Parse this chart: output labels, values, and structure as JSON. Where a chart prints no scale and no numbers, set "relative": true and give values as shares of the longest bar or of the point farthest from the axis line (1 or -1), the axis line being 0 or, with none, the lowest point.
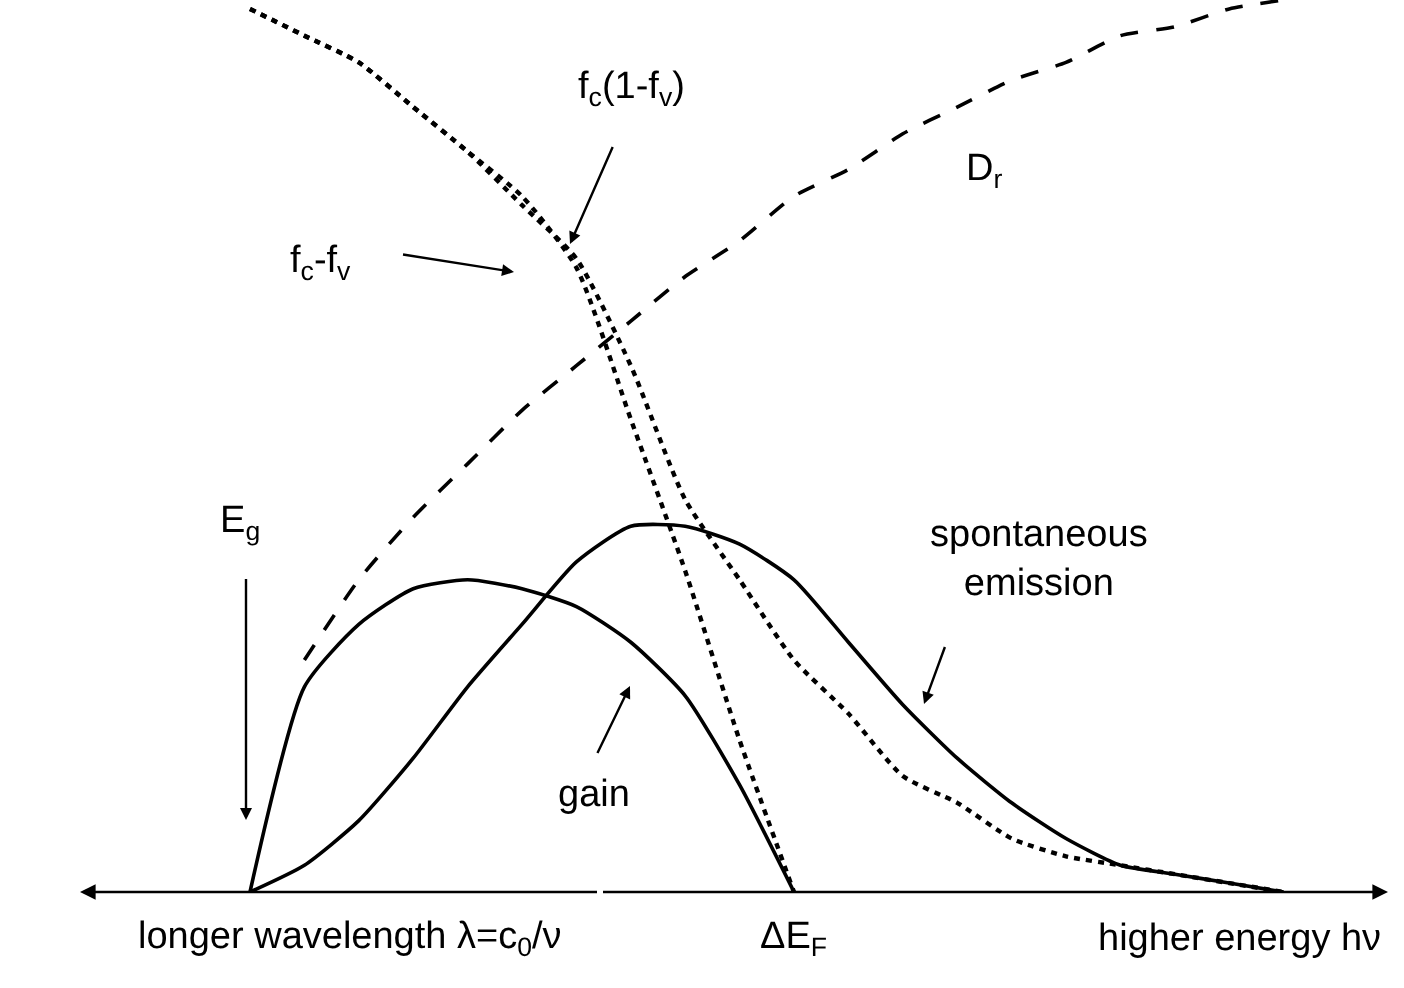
{
  "chart_data": {
    "type": "line",
    "relative": true,
    "categories": [
      null,
      null,
      null,
      null,
      null,
      null,
      null,
      null,
      null,
      null,
      null,
      null,
      null,
      null,
      null,
      null,
      null,
      null,
      null,
      null,
      null
    ],
    "series": [
      {
        "name": "gain",
        "color": "#000000",
        "line_style": "solid",
        "values": [
          0,
          0.23,
          0.3,
          0.34,
          0.35,
          0.34,
          0.32,
          0.28,
          0.22,
          0.12,
          0,
          null,
          null,
          null,
          null,
          null,
          null,
          null,
          null,
          null,
          null
        ]
      },
      {
        "name": "spontaneous\nemission",
        "color": "#000000",
        "line_style": "solid",
        "values": [
          0,
          0.03,
          0.08,
          0.15,
          0.23,
          0.3,
          0.37,
          0.41,
          0.41,
          0.39,
          0.35,
          0.28,
          0.21,
          0.15,
          0.1,
          0.06,
          0.03,
          0.02,
          0.01,
          0,
          null
        ]
      },
      {
        "name": "D$_{r}$",
        "color": "#000000",
        "line_style": "dashed",
        "values": [
          null,
          0.26,
          0.35,
          0.42,
          0.48,
          0.54,
          0.59,
          0.64,
          0.69,
          0.73,
          0.78,
          0.81,
          0.85,
          0.88,
          0.91,
          0.93,
          0.96,
          0.97,
          0.99,
          1.0,
          null
        ]
      },
      {
        "name": "f$_{c}$-f$_{v}$",
        "color": "#000000",
        "line_style": "dotted",
        "values": [
          0.99,
          0.96,
          0.93,
          0.88,
          0.83,
          0.78,
          0.7,
          0.53,
          0.36,
          0.17,
          0,
          null,
          null,
          null,
          null,
          null,
          null,
          null,
          null,
          null,
          null
        ]
      },
      {
        "name": "f$_{c}$(1-f$_{v}$)",
        "color": "#000000",
        "line_style": "dotted",
        "values": [
          0.99,
          0.96,
          0.93,
          0.88,
          0.83,
          0.77,
          0.71,
          0.59,
          0.44,
          0.35,
          0.26,
          0.2,
          0.13,
          0.1,
          0.06,
          0.04,
          0.03,
          0.02,
          0.01,
          0,
          null
        ]
      }
    ],
    "annotations": [
      "E$_{g}$",
      "longer wavelength λ=c$_{0}$/ν",
      "ΔE$_{F}$",
      "higher energy hν"
    ]
  }
}
